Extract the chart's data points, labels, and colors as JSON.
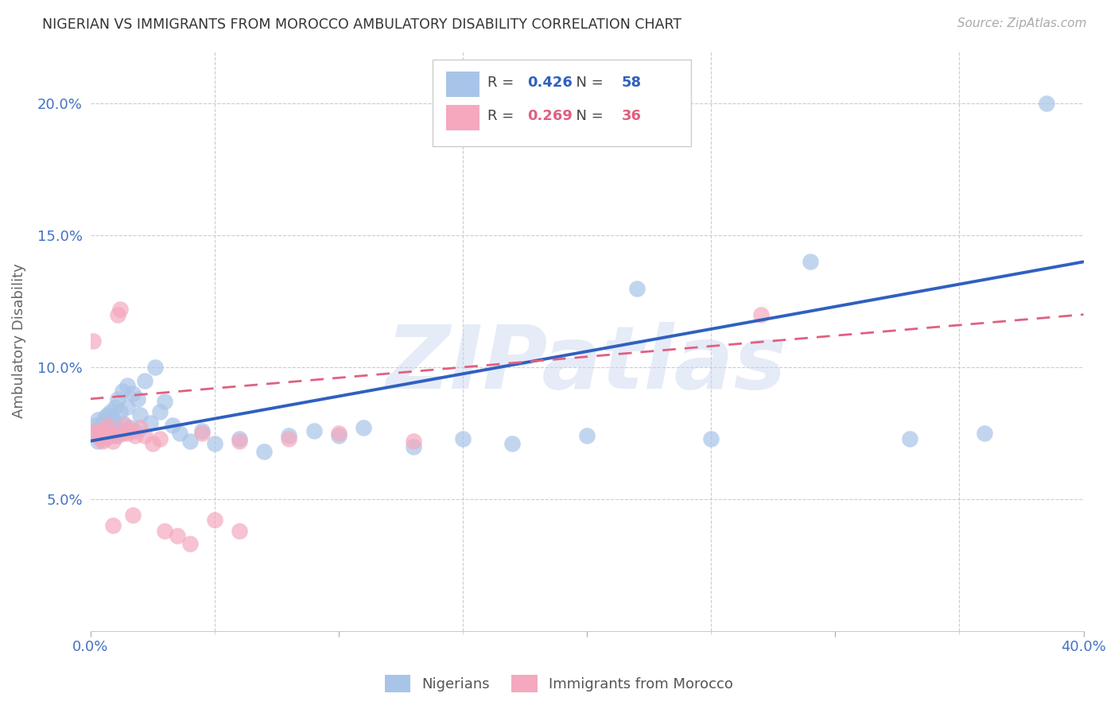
{
  "title": "NIGERIAN VS IMMIGRANTS FROM MOROCCO AMBULATORY DISABILITY CORRELATION CHART",
  "source": "Source: ZipAtlas.com",
  "ylabel": "Ambulatory Disability",
  "watermark": "ZIPatlas",
  "xmin": 0.0,
  "xmax": 0.4,
  "ymin": 0.0,
  "ymax": 0.22,
  "nigerian_R": 0.426,
  "nigerian_N": 58,
  "morocco_R": 0.269,
  "morocco_N": 36,
  "nigerian_color": "#a8c4e8",
  "morocco_color": "#f5a8be",
  "nigerian_line_color": "#3060c0",
  "morocco_line_color": "#e06080",
  "axis_color": "#4472c4",
  "legend_label_1": "Nigerians",
  "legend_label_2": "Immigrants from Morocco",
  "nigerians_x": [
    0.001,
    0.002,
    0.003,
    0.003,
    0.004,
    0.004,
    0.005,
    0.005,
    0.006,
    0.006,
    0.007,
    0.007,
    0.008,
    0.008,
    0.009,
    0.009,
    0.01,
    0.01,
    0.011,
    0.011,
    0.012,
    0.012,
    0.013,
    0.013,
    0.014,
    0.015,
    0.015,
    0.016,
    0.017,
    0.018,
    0.019,
    0.02,
    0.022,
    0.024,
    0.026,
    0.028,
    0.03,
    0.033,
    0.036,
    0.04,
    0.045,
    0.05,
    0.06,
    0.07,
    0.08,
    0.09,
    0.1,
    0.11,
    0.13,
    0.15,
    0.17,
    0.2,
    0.22,
    0.25,
    0.29,
    0.33,
    0.36,
    0.385
  ],
  "nigerians_y": [
    0.075,
    0.078,
    0.072,
    0.08,
    0.074,
    0.077,
    0.076,
    0.079,
    0.073,
    0.081,
    0.075,
    0.082,
    0.074,
    0.083,
    0.076,
    0.08,
    0.078,
    0.085,
    0.074,
    0.088,
    0.076,
    0.083,
    0.079,
    0.091,
    0.076,
    0.085,
    0.093,
    0.077,
    0.09,
    0.076,
    0.088,
    0.082,
    0.095,
    0.079,
    0.1,
    0.083,
    0.087,
    0.078,
    0.075,
    0.072,
    0.076,
    0.071,
    0.073,
    0.068,
    0.074,
    0.076,
    0.074,
    0.077,
    0.07,
    0.073,
    0.071,
    0.074,
    0.13,
    0.073,
    0.14,
    0.073,
    0.075,
    0.2
  ],
  "morocco_x": [
    0.001,
    0.002,
    0.003,
    0.004,
    0.005,
    0.005,
    0.006,
    0.007,
    0.007,
    0.008,
    0.009,
    0.01,
    0.011,
    0.012,
    0.013,
    0.015,
    0.016,
    0.018,
    0.02,
    0.022,
    0.025,
    0.028,
    0.03,
    0.035,
    0.04,
    0.045,
    0.05,
    0.06,
    0.08,
    0.1,
    0.014,
    0.017,
    0.009,
    0.27,
    0.13,
    0.06
  ],
  "morocco_y": [
    0.11,
    0.076,
    0.075,
    0.073,
    0.074,
    0.072,
    0.076,
    0.074,
    0.078,
    0.075,
    0.072,
    0.074,
    0.12,
    0.122,
    0.075,
    0.075,
    0.076,
    0.074,
    0.077,
    0.074,
    0.071,
    0.073,
    0.038,
    0.036,
    0.033,
    0.075,
    0.042,
    0.072,
    0.073,
    0.075,
    0.078,
    0.044,
    0.04,
    0.12,
    0.072,
    0.038
  ],
  "nig_line_x0": 0.0,
  "nig_line_y0": 0.072,
  "nig_line_x1": 0.4,
  "nig_line_y1": 0.14,
  "mor_line_x0": 0.0,
  "mor_line_y0": 0.088,
  "mor_line_x1": 0.4,
  "mor_line_y1": 0.12
}
